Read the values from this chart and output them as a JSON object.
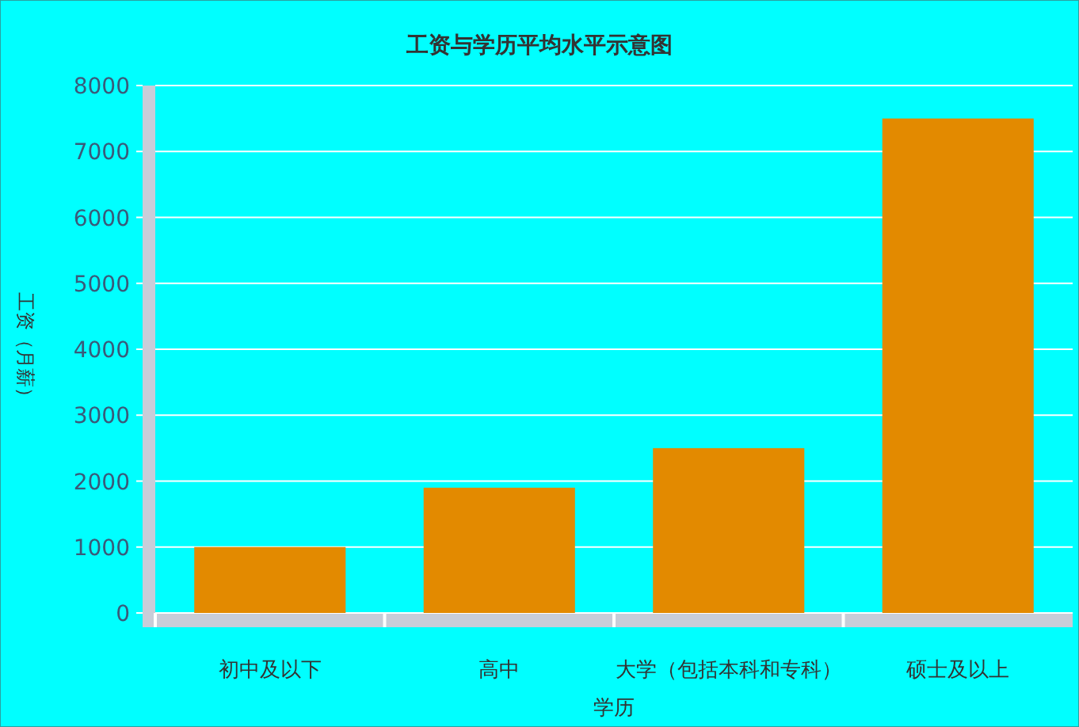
{
  "chart_data": {
    "type": "bar",
    "title": "工资与学历平均水平示意图",
    "xlabel": "学历",
    "ylabel": "工资（月薪）",
    "categories": [
      "初中及以下",
      "高中",
      "大学（包括本科和专科）",
      "硕士及以上"
    ],
    "values": [
      1000,
      1900,
      2500,
      7500
    ],
    "color": "#e38a00",
    "ylim": [
      0,
      8000
    ],
    "yticks": [
      0,
      1000,
      2000,
      3000,
      4000,
      5000,
      6000,
      7000,
      8000
    ],
    "grid": "y"
  }
}
